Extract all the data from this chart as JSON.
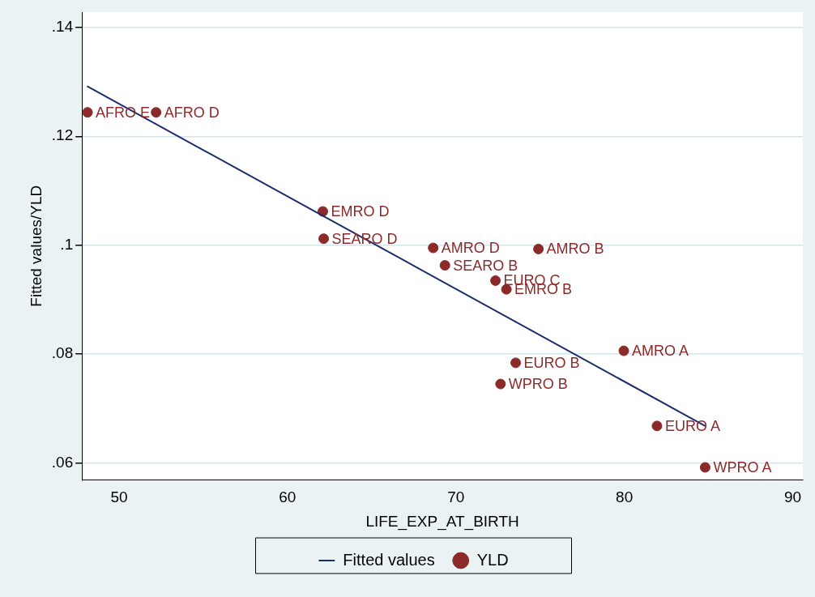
{
  "chart_data": {
    "type": "scatter",
    "xlabel": "LIFE_EXP_AT_BIRTH",
    "ylabel": "Fitted values/YLD",
    "xlim": [
      47.8,
      90.6
    ],
    "xticks": [
      50,
      60,
      70,
      80,
      90
    ],
    "ylim": [
      0.0569,
      0.1428
    ],
    "yticks": [
      {
        "value": 0.06,
        "label": ".06"
      },
      {
        "value": 0.08,
        "label": ".08"
      },
      {
        "value": 0.1,
        "label": ".1"
      },
      {
        "value": 0.12,
        "label": ".12"
      },
      {
        "value": 0.14,
        "label": ".14"
      }
    ],
    "grid": "y",
    "legend": "bottom",
    "series": [
      {
        "name": "Fitted values",
        "type": "line",
        "marker": "none",
        "color": "#1a2e6b",
        "x": [
          48.1,
          84.8
        ],
        "values": [
          0.1292,
          0.0668
        ]
      },
      {
        "name": "YLD",
        "marker": "circle",
        "color": "#8c2a2a",
        "x": [
          48.13,
          52.2,
          62.1,
          62.15,
          68.65,
          74.9,
          69.35,
          72.35,
          73.0,
          79.97,
          73.55,
          72.65,
          81.94,
          84.8
        ],
        "values": [
          0.1244,
          0.1244,
          0.1062,
          0.1012,
          0.0995,
          0.0993,
          0.0963,
          0.0935,
          0.0919,
          0.0806,
          0.0784,
          0.0745,
          0.0668,
          0.0592
        ]
      }
    ],
    "annotations": [
      {
        "text": "AFRO E",
        "x": 48.13,
        "y": 0.1244
      },
      {
        "text": "AFRO D",
        "x": 52.2,
        "y": 0.1244
      },
      {
        "text": "EMRO D",
        "x": 62.1,
        "y": 0.1062
      },
      {
        "text": "SEARO D",
        "x": 62.15,
        "y": 0.1012
      },
      {
        "text": "AMRO D",
        "x": 68.65,
        "y": 0.0995
      },
      {
        "text": "AMRO B",
        "x": 74.9,
        "y": 0.0993
      },
      {
        "text": "SEARO B",
        "x": 69.35,
        "y": 0.0963
      },
      {
        "text": "EURO C",
        "x": 72.35,
        "y": 0.0935
      },
      {
        "text": "EMRO B",
        "x": 73.0,
        "y": 0.0919
      },
      {
        "text": "AMRO A",
        "x": 79.97,
        "y": 0.0806
      },
      {
        "text": "EURO B",
        "x": 73.55,
        "y": 0.0784
      },
      {
        "text": "WPRO B",
        "x": 72.65,
        "y": 0.0745
      },
      {
        "text": "EURO A",
        "x": 81.94,
        "y": 0.0668
      },
      {
        "text": "WPRO A",
        "x": 84.8,
        "y": 0.0592
      }
    ]
  }
}
